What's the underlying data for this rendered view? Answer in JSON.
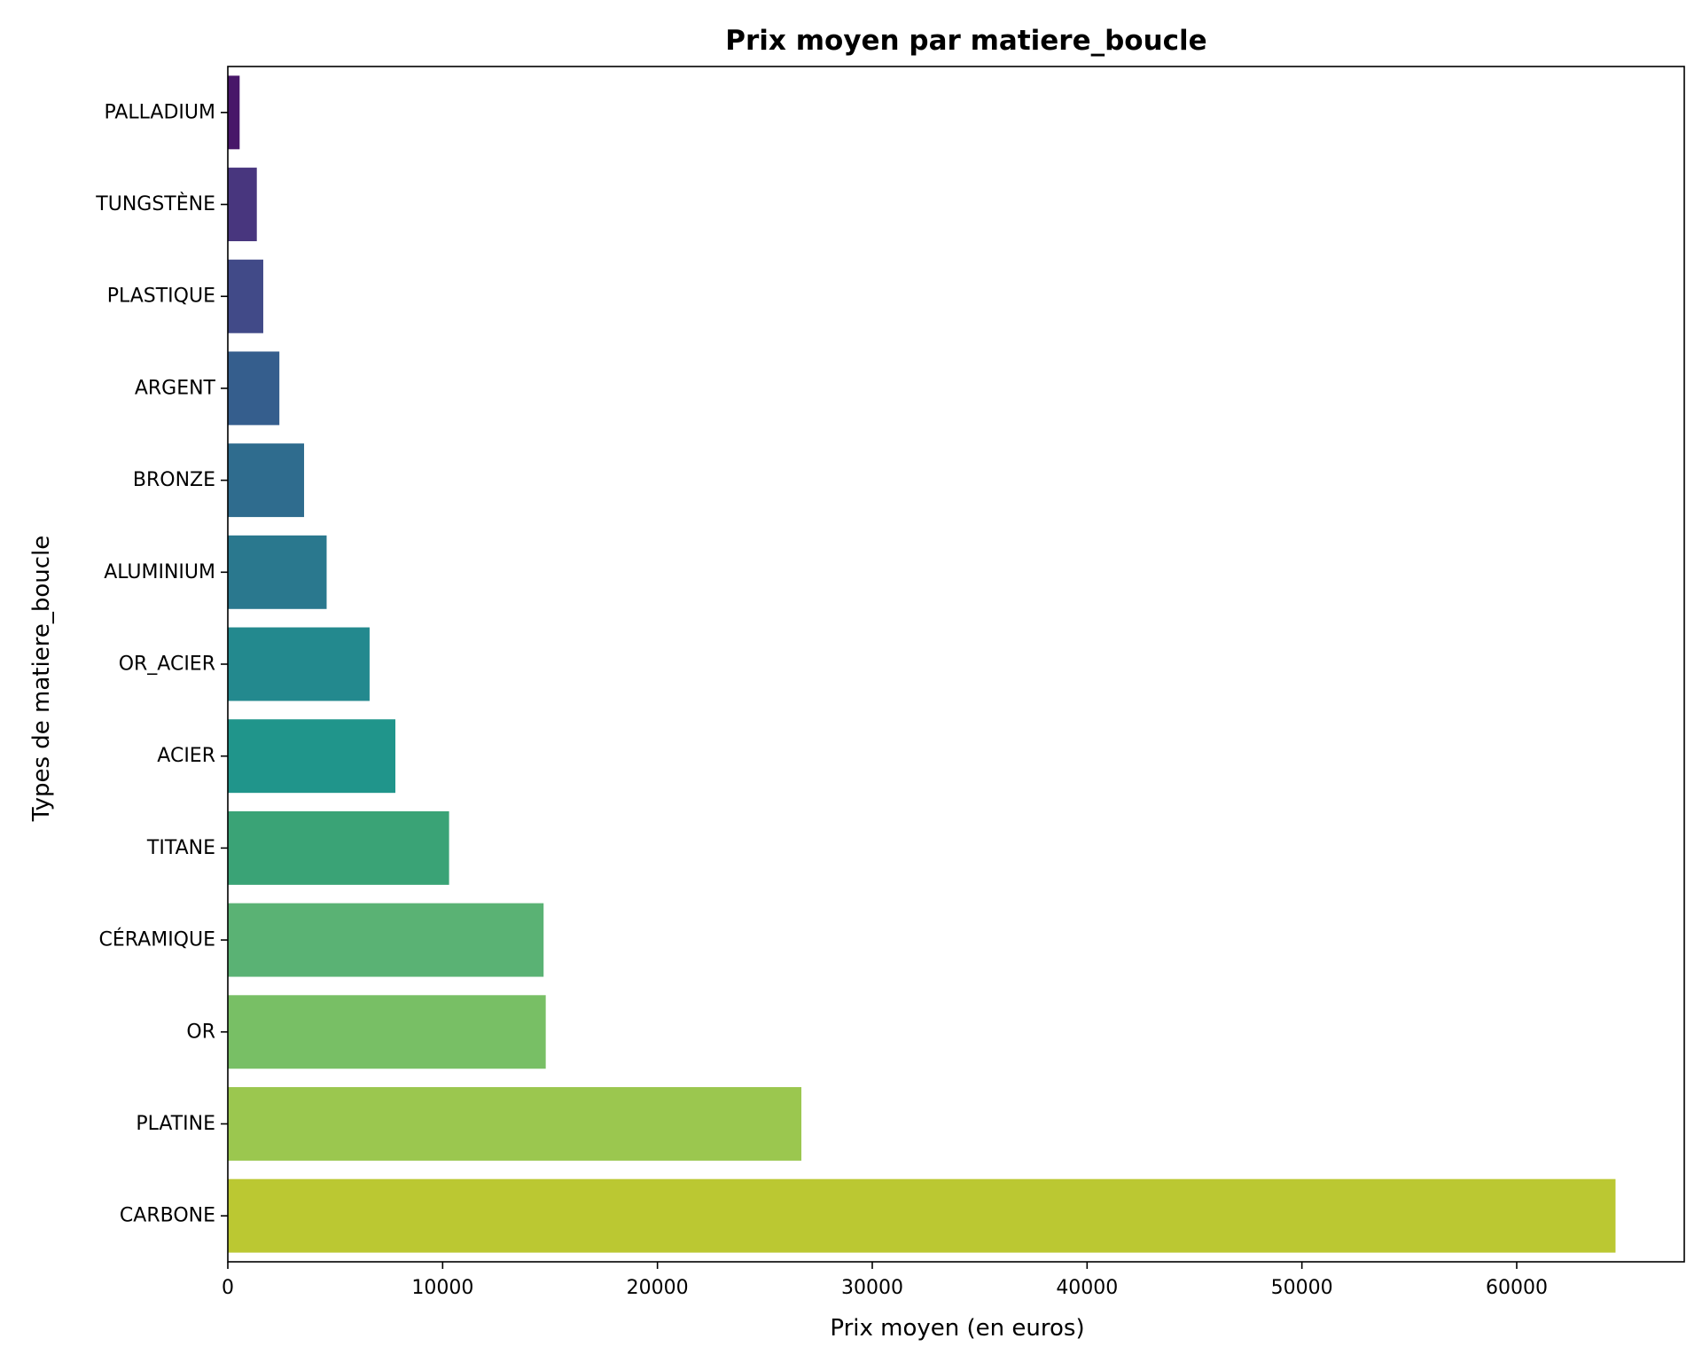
{
  "chart_data": {
    "type": "bar",
    "orientation": "horizontal",
    "title": "Prix moyen par matiere_boucle",
    "xlabel": "Prix moyen (en euros)",
    "ylabel": "Types de matiere_boucle",
    "xlim": [
      0,
      67800
    ],
    "xticks": [
      0,
      10000,
      20000,
      30000,
      40000,
      50000,
      60000
    ],
    "xtick_labels": [
      "0",
      "10000",
      "20000",
      "30000",
      "40000",
      "50000",
      "60000"
    ],
    "grid": false,
    "legend": "none",
    "categories": [
      "PALLADIUM",
      "TUNGSTÈNE",
      "PLASTIQUE",
      "ARGENT",
      "BRONZE",
      "ALUMINIUM",
      "OR_ACIER",
      "ACIER",
      "TITANE",
      "CÉRAMIQUE",
      "OR",
      "PLATINE",
      "CARBONE"
    ],
    "values": [
      550,
      1350,
      1650,
      2400,
      3550,
      4600,
      6600,
      7800,
      10300,
      14700,
      14800,
      26700,
      64600
    ],
    "colors": [
      "#481769",
      "#48367e",
      "#414a88",
      "#355e8d",
      "#2f6c8e",
      "#2a788e",
      "#23898e",
      "#20958b",
      "#3aa376",
      "#5ab274",
      "#78bf65",
      "#9bc74f",
      "#bbc832"
    ]
  }
}
